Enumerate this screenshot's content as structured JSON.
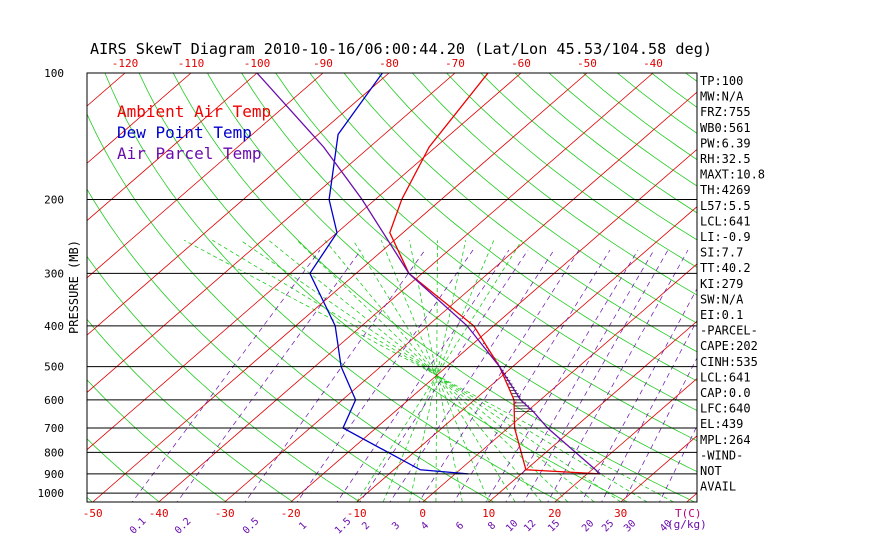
{
  "chart_data": {
    "type": "line",
    "title": "AIRS SkewT Diagram 2010-10-16/06:00:44.20 (Lat/Lon 45.53/104.58 deg)",
    "ylabel": "PRESSURE (MB)",
    "xlabel_right": "T(C)",
    "mixing_ratio_unit": "(g/kg)",
    "y_scale": "log",
    "ylim": [
      1050,
      100
    ],
    "pressure_ticks": [
      100,
      200,
      300,
      400,
      500,
      600,
      700,
      800,
      900,
      1000
    ],
    "top_temp_ticks": [
      -120,
      -110,
      -100,
      -90,
      -80,
      -70,
      -60,
      -50,
      -40
    ],
    "bottom_temp_ticks": [
      -50,
      -40,
      -30,
      -20,
      -10,
      0,
      10,
      20,
      30
    ],
    "mixing_ratio_ticks": [
      "0.1",
      "0.2",
      "0.5",
      "1",
      "1.5",
      "2",
      "3",
      "4",
      "6",
      "8",
      "10",
      "12",
      "15",
      "20",
      "25",
      "30",
      "40"
    ],
    "legend": [
      {
        "label": "Ambient Air Temp",
        "color": "#ee0000"
      },
      {
        "label": "Dew Point Temp",
        "color": "#0000cc"
      },
      {
        "label": "Air Parcel Temp",
        "color": "#6a0dad"
      }
    ],
    "series": [
      {
        "name": "Ambient Air Temp",
        "color": "#ee0000",
        "points": [
          {
            "p": 900,
            "t": 22
          },
          {
            "p": 880,
            "t": 10
          },
          {
            "p": 700,
            "t": 1
          },
          {
            "p": 600,
            "t": -4
          },
          {
            "p": 500,
            "t": -12
          },
          {
            "p": 400,
            "t": -23
          },
          {
            "p": 300,
            "t": -42
          },
          {
            "p": 240,
            "t": -52
          },
          {
            "p": 200,
            "t": -56
          },
          {
            "p": 150,
            "t": -61
          },
          {
            "p": 100,
            "t": -65
          }
        ]
      },
      {
        "name": "Dew Point Temp",
        "color": "#0000cc",
        "points": [
          {
            "p": 900,
            "t": 2
          },
          {
            "p": 880,
            "t": -6
          },
          {
            "p": 700,
            "t": -25
          },
          {
            "p": 600,
            "t": -28
          },
          {
            "p": 500,
            "t": -36
          },
          {
            "p": 400,
            "t": -44
          },
          {
            "p": 300,
            "t": -57
          },
          {
            "p": 240,
            "t": -60
          },
          {
            "p": 200,
            "t": -67
          },
          {
            "p": 140,
            "t": -77
          },
          {
            "p": 100,
            "t": -81
          }
        ]
      },
      {
        "name": "Air Parcel Temp",
        "color": "#6a0dad",
        "points": [
          {
            "p": 900,
            "t": 22
          },
          {
            "p": 700,
            "t": 6
          },
          {
            "p": 640,
            "t": 1
          },
          {
            "p": 600,
            "t": -3
          },
          {
            "p": 500,
            "t": -12
          },
          {
            "p": 439,
            "t": -19
          },
          {
            "p": 400,
            "t": -24
          },
          {
            "p": 300,
            "t": -42
          },
          {
            "p": 200,
            "t": -62
          },
          {
            "p": 150,
            "t": -77
          },
          {
            "p": 100,
            "t": -100
          }
        ]
      }
    ],
    "cape_region": {
      "from_p": 640,
      "to_p": 439
    }
  },
  "stats": [
    "TP:100",
    "MW:N/A",
    "FRZ:755",
    "WB0:561",
    "PW:6.39",
    "RH:32.5",
    "MAXT:10.8",
    "TH:4269",
    "L57:5.5",
    "LCL:641",
    "LI:-0.9",
    "SI:7.7",
    "TT:40.2",
    "KI:279",
    "SW:N/A",
    "EI:0.1",
    "-PARCEL-",
    "CAPE:202",
    "CINH:535",
    "LCL:641",
    "CAP:0.0",
    "LFC:640",
    "EL:439",
    "MPL:264",
    "-WIND-",
    "NOT",
    "AVAIL"
  ]
}
